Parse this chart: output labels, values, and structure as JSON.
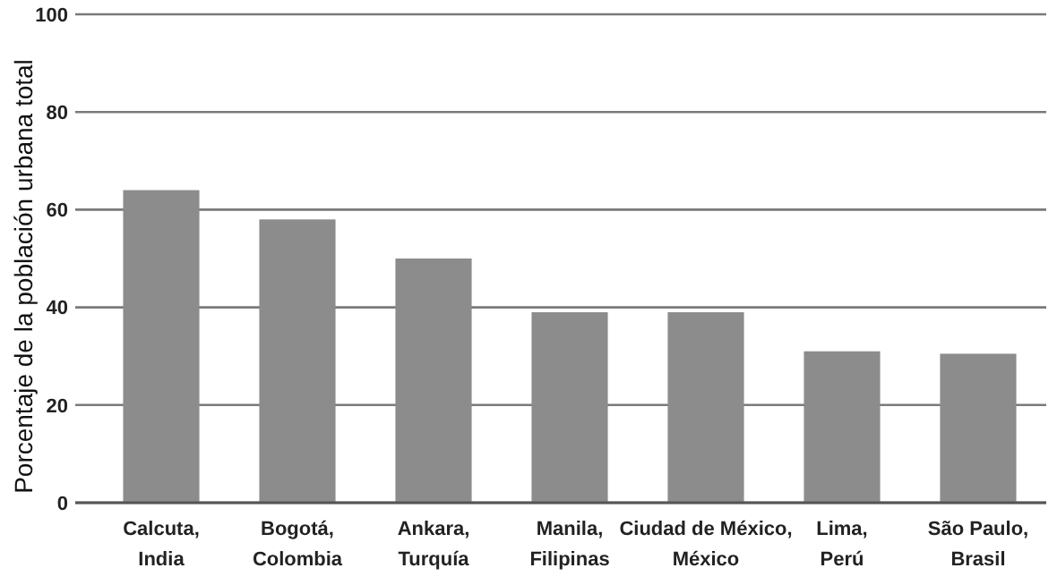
{
  "chart_data": {
    "type": "bar",
    "ylabel": "Porcentaje de la población urbana total",
    "categories": [
      "Calcuta,\nIndia",
      "Bogotá,\nColombia",
      "Ankara,\nTurquía",
      "Manila,\nFilipinas",
      "Ciudad de México,\nMéxico",
      "Lima,\nPerú",
      "São Paulo,\nBrasil"
    ],
    "values": [
      64,
      58,
      50,
      39,
      39,
      31,
      30.5
    ],
    "color": "#8c8c8c",
    "ylim": [
      0,
      100
    ],
    "yticks": [
      0,
      20,
      40,
      60,
      80,
      100
    ],
    "grid": "y"
  }
}
